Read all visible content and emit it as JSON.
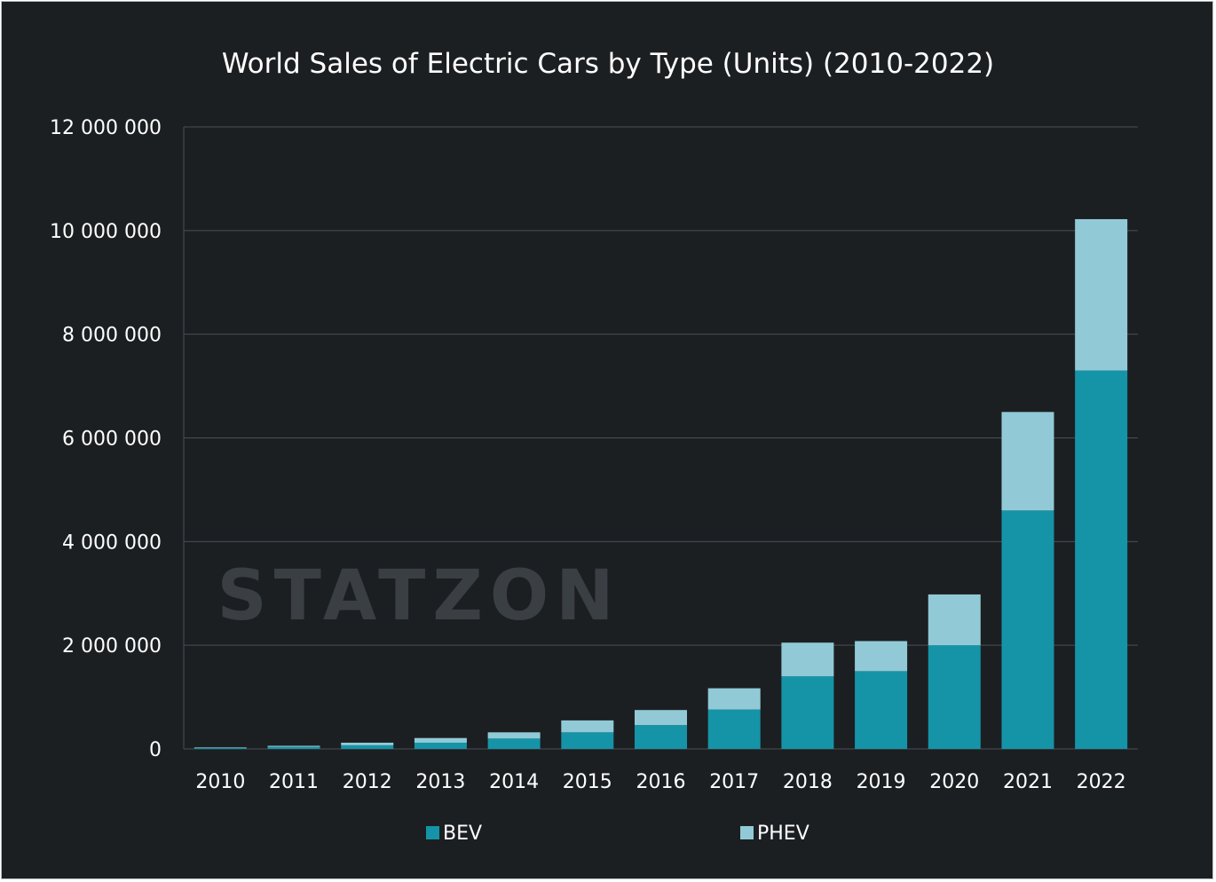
{
  "watermark": "STATZON",
  "colors": {
    "background": "#1c1f22",
    "grid": "#4a4f54",
    "text": "#ffffff",
    "bev": "#1594a8",
    "phev": "#91cad6",
    "watermark": "#3a3f44"
  },
  "chart_data": {
    "type": "bar",
    "stacked": true,
    "title": "World Sales of Electric Cars by Type (Units) (2010-2022)",
    "xlabel": "",
    "ylabel": "",
    "ylim": [
      0,
      12000000
    ],
    "yticks": [
      0,
      2000000,
      4000000,
      6000000,
      8000000,
      10000000,
      12000000
    ],
    "ytick_labels": [
      "0",
      "2 000 000",
      "4 000 000",
      "6 000 000",
      "8 000 000",
      "10 000 000",
      "12 000 000"
    ],
    "categories": [
      "2010",
      "2011",
      "2012",
      "2013",
      "2014",
      "2015",
      "2016",
      "2017",
      "2018",
      "2019",
      "2020",
      "2021",
      "2022"
    ],
    "series": [
      {
        "name": "BEV",
        "values": [
          20000,
          40000,
          70000,
          120000,
          200000,
          320000,
          460000,
          760000,
          1400000,
          1500000,
          2000000,
          4600000,
          7300000
        ]
      },
      {
        "name": "PHEV",
        "values": [
          10000,
          20000,
          50000,
          90000,
          120000,
          230000,
          290000,
          410000,
          650000,
          580000,
          980000,
          1900000,
          2920000
        ]
      }
    ],
    "legend": {
      "position": "bottom",
      "entries": [
        "BEV",
        "PHEV"
      ]
    },
    "grid": true
  }
}
